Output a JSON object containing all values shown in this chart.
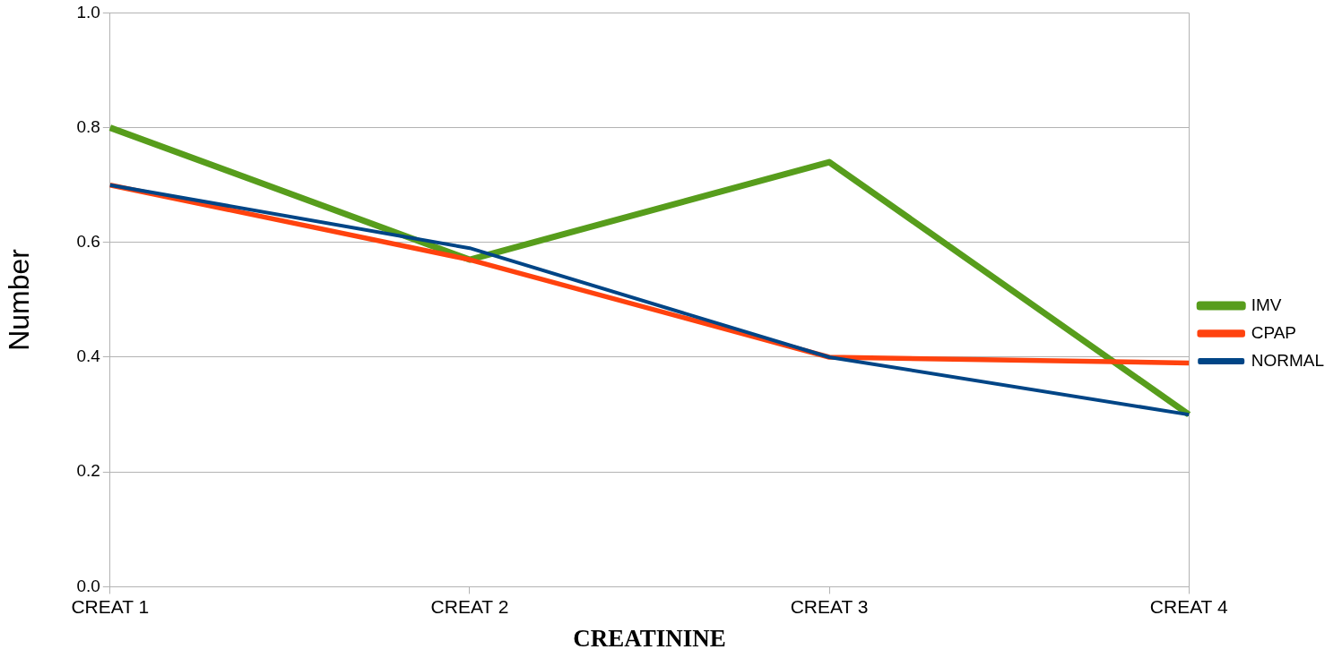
{
  "chart_data": {
    "type": "line",
    "xlabel": "CREATININE",
    "ylabel": "Number",
    "categories": [
      "CREAT 1",
      "CREAT 2",
      "CREAT 3",
      "CREAT 4"
    ],
    "series": [
      {
        "name": "IMV",
        "color": "#579d1c",
        "values": [
          0.8,
          0.57,
          0.74,
          0.3
        ]
      },
      {
        "name": "CPAP",
        "color": "#ff420e",
        "values": [
          0.7,
          0.57,
          0.4,
          0.39
        ]
      },
      {
        "name": "NORMAL",
        "color": "#004586",
        "values": [
          0.7,
          0.59,
          0.4,
          0.3
        ]
      }
    ],
    "ylim": [
      0,
      1
    ],
    "yticks": [
      {
        "value": 0,
        "label": "0.0"
      },
      {
        "value": 0.2,
        "label": "0.2"
      },
      {
        "value": 0.4,
        "label": "0.4"
      },
      {
        "value": 0.6,
        "label": "0.6"
      },
      {
        "value": 0.8,
        "label": "0.8"
      },
      {
        "value": 1,
        "label": "1.0"
      }
    ],
    "grid": "y",
    "legend": "right",
    "marker": "none",
    "line_style": "solid"
  }
}
